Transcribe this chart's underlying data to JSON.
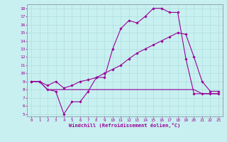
{
  "xlabel": "Windchill (Refroidissement éolien,°C)",
  "xlim": [
    -0.5,
    23.5
  ],
  "ylim": [
    4.7,
    18.5
  ],
  "yticks": [
    5,
    6,
    7,
    8,
    9,
    10,
    11,
    12,
    13,
    14,
    15,
    16,
    17,
    18
  ],
  "xticks": [
    0,
    1,
    2,
    3,
    4,
    5,
    6,
    7,
    8,
    9,
    10,
    11,
    12,
    13,
    14,
    15,
    16,
    17,
    18,
    19,
    20,
    21,
    22,
    23
  ],
  "background_color": "#c8f0f0",
  "grid_color": "#b0dede",
  "line_color": "#990099",
  "line1_x": [
    0,
    1,
    2,
    3,
    4,
    5,
    6,
    7,
    8,
    9,
    10,
    11,
    12,
    13,
    14,
    15,
    16,
    17,
    18,
    19,
    20,
    21,
    22,
    23
  ],
  "line1_y": [
    9.0,
    9.0,
    8.0,
    7.8,
    5.0,
    6.5,
    6.5,
    7.8,
    9.5,
    9.5,
    13.0,
    15.5,
    16.5,
    16.2,
    17.0,
    18.0,
    18.0,
    17.5,
    17.5,
    11.8,
    7.5,
    7.5,
    7.5,
    7.5
  ],
  "line2_x": [
    0,
    1,
    2,
    3,
    4,
    5,
    6,
    7,
    8,
    9,
    10,
    11,
    14,
    20,
    21,
    22,
    23
  ],
  "line2_y": [
    9.0,
    9.0,
    8.0,
    8.0,
    8.0,
    8.0,
    8.0,
    8.0,
    8.0,
    8.0,
    8.0,
    8.0,
    8.0,
    8.0,
    7.5,
    7.5,
    7.5
  ],
  "line3_x": [
    0,
    1,
    2,
    3,
    4,
    5,
    6,
    7,
    8,
    9,
    10,
    11,
    12,
    13,
    14,
    15,
    16,
    17,
    18,
    19,
    20,
    21,
    22,
    23
  ],
  "line3_y": [
    9.0,
    9.0,
    8.5,
    9.0,
    8.2,
    8.5,
    9.0,
    9.2,
    9.5,
    10.0,
    10.5,
    11.0,
    11.8,
    12.5,
    13.0,
    13.5,
    14.0,
    14.5,
    15.0,
    14.8,
    12.0,
    9.0,
    7.8,
    7.8
  ]
}
